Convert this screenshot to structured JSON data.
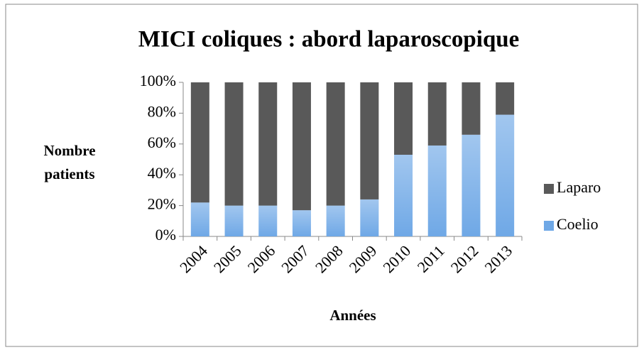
{
  "chart_data": {
    "type": "stacked_bar",
    "title": "MICI coliques : abord laparoscopique",
    "x_label": "Années",
    "y_label": "Nombre patients",
    "categories": [
      "2004",
      "2005",
      "2006",
      "2007",
      "2008",
      "2009",
      "2010",
      "2011",
      "2012",
      "2013"
    ],
    "series": [
      {
        "name": "Coelio",
        "color": "#6fa8e6",
        "values": [
          22,
          20,
          20,
          17,
          20,
          24,
          53,
          59,
          66,
          79
        ]
      },
      {
        "name": "Laparo",
        "color": "#595959",
        "values": [
          78,
          80,
          80,
          83,
          80,
          76,
          47,
          41,
          34,
          21
        ]
      }
    ],
    "ylim": [
      0,
      100
    ],
    "yticks": [
      {
        "value": 0,
        "label": "0%"
      },
      {
        "value": 20,
        "label": "20%"
      },
      {
        "value": 40,
        "label": "40%"
      },
      {
        "value": 60,
        "label": "60%"
      },
      {
        "value": 80,
        "label": "80%"
      },
      {
        "value": 100,
        "label": "100%"
      }
    ],
    "legend": "right"
  }
}
